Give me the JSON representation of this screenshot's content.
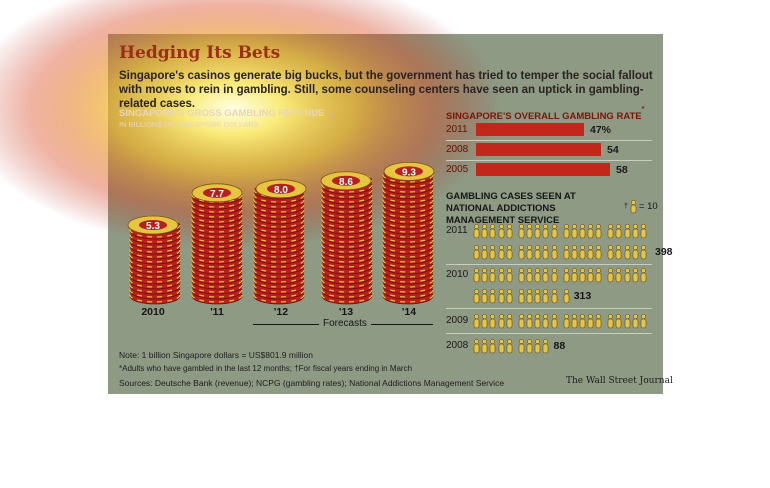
{
  "header": {
    "title": "Hedging Its Bets",
    "subtitle": "Singapore's casinos generate big bucks, but the government has tried to temper the social fallout with moves to rein in gambling. Still, some counseling centers have seen an uptick in gambling-related cases."
  },
  "colors": {
    "chip_red": "#b7201c",
    "chip_yellow": "#e8c443",
    "bar_red": "#c3261b",
    "figure_yellow": "#e8c443",
    "panel": "#8e9a84",
    "heading_red": "#7a1608"
  },
  "chart_data": [
    {
      "type": "bar",
      "title": "SINGAPORE'S GROSS GAMBLING REVENUE",
      "subtitle": "IN BILLIONS OF SINGAPORE DOLLARS",
      "categories": [
        "2010",
        "'11",
        "'12",
        "'13",
        "'14"
      ],
      "values": [
        5.3,
        7.7,
        8.0,
        8.6,
        9.3
      ],
      "ylim": [
        0,
        10
      ],
      "forecast_label": "Forecasts",
      "forecast_categories": [
        "'12",
        "'13",
        "'14"
      ]
    },
    {
      "type": "bar",
      "title": "SINGAPORE'S OVERALL GAMBLING RATE",
      "title_mark": "*",
      "categories": [
        "2011",
        "2008",
        "2005"
      ],
      "values": [
        47,
        54,
        58
      ],
      "value_labels": [
        "47%",
        "54",
        "58"
      ],
      "xlim": [
        0,
        65
      ]
    },
    {
      "type": "bar",
      "title": "GAMBLING CASES SEEN AT NATIONAL ADDICTIONS MANAGEMENT SERVICE",
      "title_mark": "†",
      "legend": "= 10",
      "categories": [
        "2011",
        "2010",
        "2009",
        "2008"
      ],
      "values": [
        398,
        313,
        216,
        88
      ]
    }
  ],
  "footer": {
    "note": "Note: 1 billion Singapore dollars = US$801.9 million",
    "footnote": "*Adults who have gambled in the last 12 months; †For fiscal years ending in March",
    "sources": "Sources: Deutsche Bank (revenue); NCPG (gambling rates); National Addictions Management Service",
    "credit": "The Wall Street Journal"
  }
}
